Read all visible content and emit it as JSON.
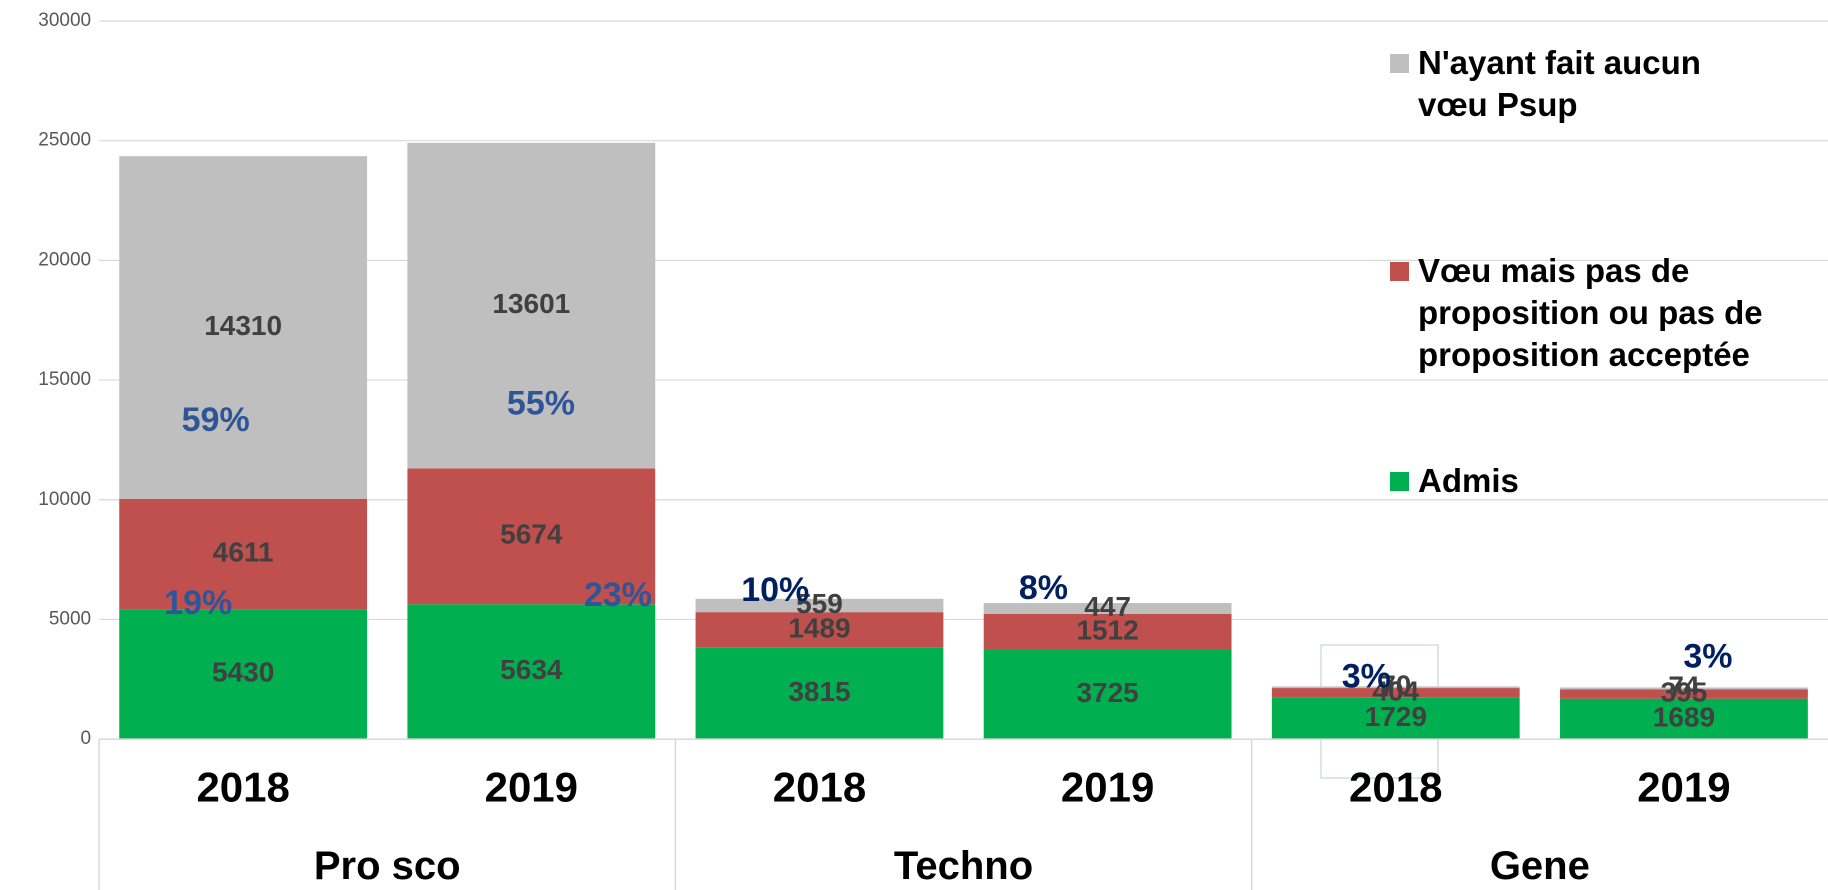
{
  "chart_data": {
    "type": "stacked_bar",
    "categories": [
      "2018",
      "2019",
      "2018",
      "2019",
      "2018",
      "2019"
    ],
    "groups": [
      "Pro sco",
      "Techno",
      "Gene"
    ],
    "series": [
      {
        "name": "Admis",
        "color": "#00b050",
        "values": [
          5430,
          5634,
          3815,
          3725,
          1729,
          1689
        ]
      },
      {
        "name": "Vœu mais pas de proposition ou  pas de proposition acceptée",
        "color": "#c0504d",
        "values": [
          4611,
          5674,
          1489,
          1512,
          404,
          395
        ]
      },
      {
        "name": "N'ayant fait aucun vœu Psup",
        "color": "#bfbfbf",
        "values": [
          14310,
          13601,
          559,
          447,
          70,
          74
        ]
      }
    ],
    "annotations": [
      "59%",
      "19%",
      "55%",
      "23%",
      "10%",
      "8%",
      "3%",
      "3%"
    ],
    "ylim": [
      0,
      30000
    ],
    "yticks": [
      0,
      5000,
      10000,
      15000,
      20000,
      25000,
      30000
    ],
    "grid": true,
    "legend": "right"
  }
}
